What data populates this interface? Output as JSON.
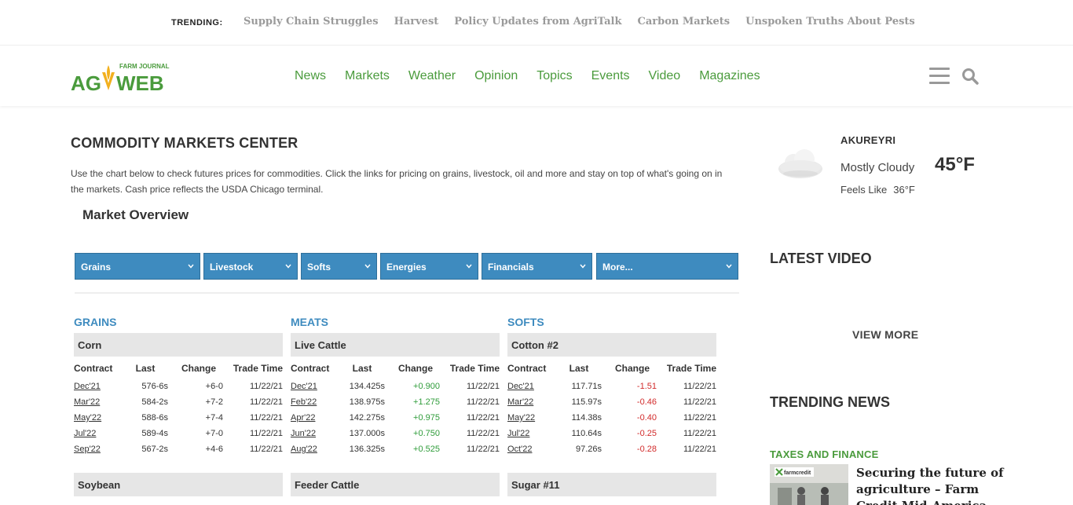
{
  "trending": {
    "label": "TRENDING:",
    "links": [
      "Supply Chain Struggles",
      "Harvest",
      "Policy Updates from AgriTalk",
      "Carbon Markets",
      "Unspoken Truths About Pests"
    ]
  },
  "header": {
    "logo_small": "FARM JOURNAL",
    "logo_left": "AG",
    "logo_right": "WEB",
    "nav": [
      "News",
      "Markets",
      "Weather",
      "Opinion",
      "Topics",
      "Events",
      "Video",
      "Magazines"
    ]
  },
  "main": {
    "title": "COMMODITY MARKETS CENTER",
    "intro": "Use the chart below to check futures prices for commodities. Click the links for pricing on grains, livestock, oil and more and stay on top of what's going on in the markets. Cash price reflects the USDA Chicago terminal.",
    "overview_title": "Market Overview",
    "tabs": [
      "Grains",
      "Livestock",
      "Softs",
      "Energies",
      "Financials",
      "More..."
    ],
    "columns_header": [
      "Contract",
      "Last",
      "Change",
      "Trade Time"
    ],
    "markets": [
      {
        "title": "GRAINS",
        "group": "Corn",
        "next_group": "Soybean",
        "rows": [
          {
            "contract": "Dec'21",
            "last": "576-6s",
            "change": "+6-0",
            "time": "11/22/21",
            "dir": "plain"
          },
          {
            "contract": "Mar'22",
            "last": "584-2s",
            "change": "+7-2",
            "time": "11/22/21",
            "dir": "plain"
          },
          {
            "contract": "May'22",
            "last": "588-6s",
            "change": "+7-4",
            "time": "11/22/21",
            "dir": "plain"
          },
          {
            "contract": "Jul'22",
            "last": "589-4s",
            "change": "+7-0",
            "time": "11/22/21",
            "dir": "plain"
          },
          {
            "contract": "Sep'22",
            "last": "567-2s",
            "change": "+4-6",
            "time": "11/22/21",
            "dir": "plain"
          }
        ]
      },
      {
        "title": "MEATS",
        "group": "Live Cattle",
        "next_group": "Feeder Cattle",
        "rows": [
          {
            "contract": "Dec'21",
            "last": "134.425s",
            "change": "+0.900",
            "time": "11/22/21",
            "dir": "pos"
          },
          {
            "contract": "Feb'22",
            "last": "138.975s",
            "change": "+1.275",
            "time": "11/22/21",
            "dir": "pos"
          },
          {
            "contract": "Apr'22",
            "last": "142.275s",
            "change": "+0.975",
            "time": "11/22/21",
            "dir": "pos"
          },
          {
            "contract": "Jun'22",
            "last": "137.000s",
            "change": "+0.750",
            "time": "11/22/21",
            "dir": "pos"
          },
          {
            "contract": "Aug'22",
            "last": "136.325s",
            "change": "+0.525",
            "time": "11/22/21",
            "dir": "pos"
          }
        ]
      },
      {
        "title": "SOFTS",
        "group": "Cotton #2",
        "next_group": "Sugar #11",
        "rows": [
          {
            "contract": "Dec'21",
            "last": "117.71s",
            "change": "-1.51",
            "time": "11/22/21",
            "dir": "neg"
          },
          {
            "contract": "Mar'22",
            "last": "115.97s",
            "change": "-0.46",
            "time": "11/22/21",
            "dir": "neg"
          },
          {
            "contract": "May'22",
            "last": "114.38s",
            "change": "-0.40",
            "time": "11/22/21",
            "dir": "neg"
          },
          {
            "contract": "Jul'22",
            "last": "110.64s",
            "change": "-0.25",
            "time": "11/22/21",
            "dir": "neg"
          },
          {
            "contract": "Oct'22",
            "last": "97.26s",
            "change": "-0.28",
            "time": "11/22/21",
            "dir": "neg"
          }
        ]
      }
    ]
  },
  "sidebar": {
    "weather": {
      "city": "AKUREYRI",
      "condition": "Mostly Cloudy",
      "temp": "45°F",
      "feels_label": "Feels Like",
      "feels_temp": "36°F"
    },
    "latest_video": "LATEST VIDEO",
    "view_more": "VIEW MORE",
    "trending_news": "TRENDING NEWS",
    "news_category": "TAXES AND FINANCE",
    "news_thumb_text": "farmcredit",
    "news_headline": "Securing the future of agriculture – Farm Credit Mid-America"
  },
  "colors": {
    "accent_green": "#4a9b3c",
    "tab_blue": "#3e8bbf",
    "positive": "#2f9c3a",
    "negative": "#d22b2b"
  }
}
